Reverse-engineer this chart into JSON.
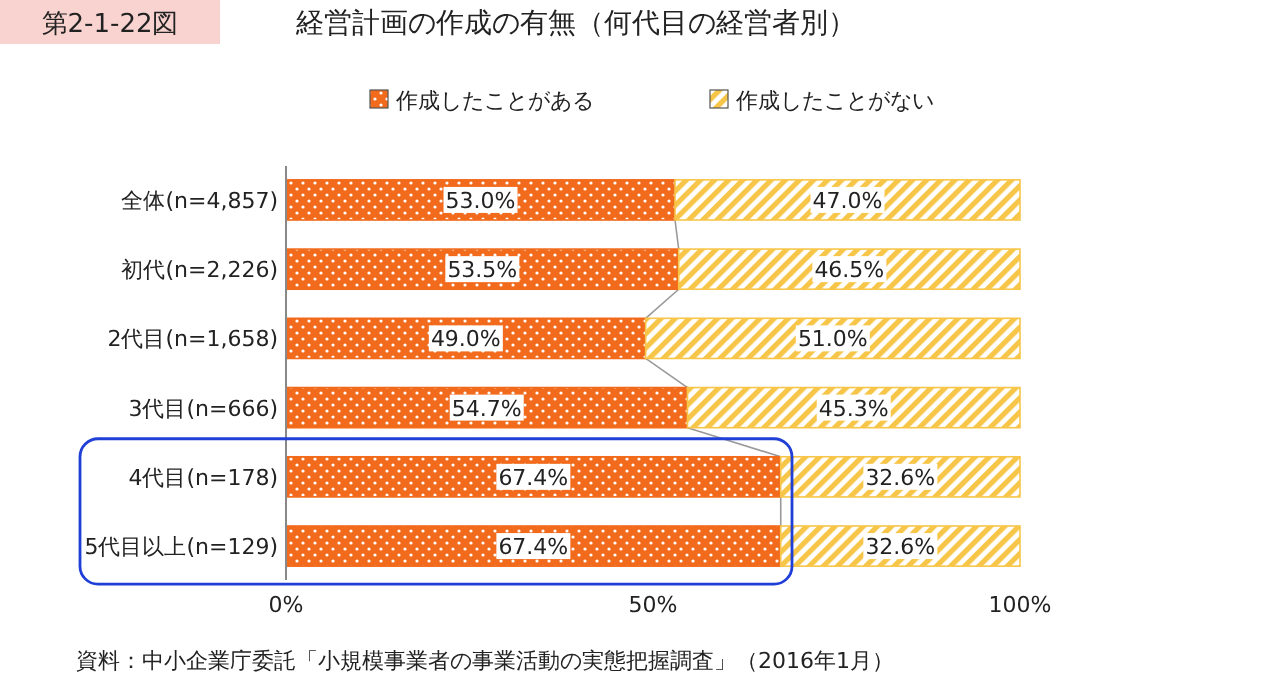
{
  "chart_data": {
    "type": "bar",
    "orientation": "horizontal",
    "stacked": true,
    "title": "経営計画の作成の有無（何代目の経営者別）",
    "subtitle": "第2-1-22図",
    "categories": [
      "全体(n=4,857)",
      "初代(n=2,226)",
      "2代目(n=1,658)",
      "3代目(n=666)",
      "4代目(n=178)",
      "5代目以上(n=129)"
    ],
    "series": [
      {
        "name": "作成したことがある",
        "color": "#f26a1b",
        "values": [
          53.0,
          53.5,
          49.0,
          54.7,
          67.4,
          67.4
        ],
        "value_labels": [
          "53.0%",
          "53.5%",
          "49.0%",
          "54.7%",
          "67.4%",
          "67.4%"
        ]
      },
      {
        "name": "作成したことがない",
        "color": "#f7c548",
        "values": [
          47.0,
          46.5,
          51.0,
          45.3,
          32.6,
          32.6
        ],
        "value_labels": [
          "47.0%",
          "46.5%",
          "51.0%",
          "45.3%",
          "32.6%",
          "32.6%"
        ]
      }
    ],
    "xlim": [
      0,
      100
    ],
    "xticks": [
      {
        "value": 0,
        "label": "0%"
      },
      {
        "value": 50,
        "label": "50%"
      },
      {
        "value": 100,
        "label": "100%"
      }
    ],
    "legend": "top",
    "grid": false,
    "annotations": [
      "資料：中小企業庁委託「小規模事業者の事業活動の実態把握調査」（2016年1月）"
    ]
  }
}
